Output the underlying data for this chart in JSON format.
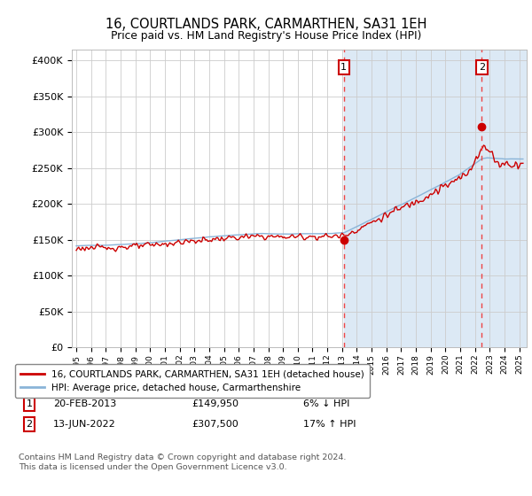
{
  "title": "16, COURTLANDS PARK, CARMARTHEN, SA31 1EH",
  "subtitle": "Price paid vs. HM Land Registry's House Price Index (HPI)",
  "title_fontsize": 10.5,
  "subtitle_fontsize": 9,
  "ylabel_ticks": [
    "£0",
    "£50K",
    "£100K",
    "£150K",
    "£200K",
    "£250K",
    "£300K",
    "£350K",
    "£400K"
  ],
  "ytick_values": [
    0,
    50000,
    100000,
    150000,
    200000,
    250000,
    300000,
    350000,
    400000
  ],
  "ylim": [
    0,
    415000
  ],
  "xlim_start": 1994.7,
  "xlim_end": 2025.5,
  "sale1_x": 2013.12,
  "sale1_y": 149950,
  "sale1_label": "1",
  "sale2_x": 2022.45,
  "sale2_y": 307500,
  "sale2_label": "2",
  "line_hpi_color": "#8ab4d8",
  "line_price_color": "#cc0000",
  "dot_color": "#cc0000",
  "dashed_line_color": "#ee4444",
  "shade_color": "#dce9f5",
  "grid_color": "#cccccc",
  "bg_color": "#ffffff",
  "legend_entry1": "16, COURTLANDS PARK, CARMARTHEN, SA31 1EH (detached house)",
  "legend_entry2": "HPI: Average price, detached house, Carmarthenshire",
  "note1_num": "1",
  "note1_date": "20-FEB-2013",
  "note1_price": "£149,950",
  "note1_pct": "6% ↓ HPI",
  "note2_num": "2",
  "note2_date": "13-JUN-2022",
  "note2_price": "£307,500",
  "note2_pct": "17% ↑ HPI",
  "footer": "Contains HM Land Registry data © Crown copyright and database right 2024.\nThis data is licensed under the Open Government Licence v3.0."
}
